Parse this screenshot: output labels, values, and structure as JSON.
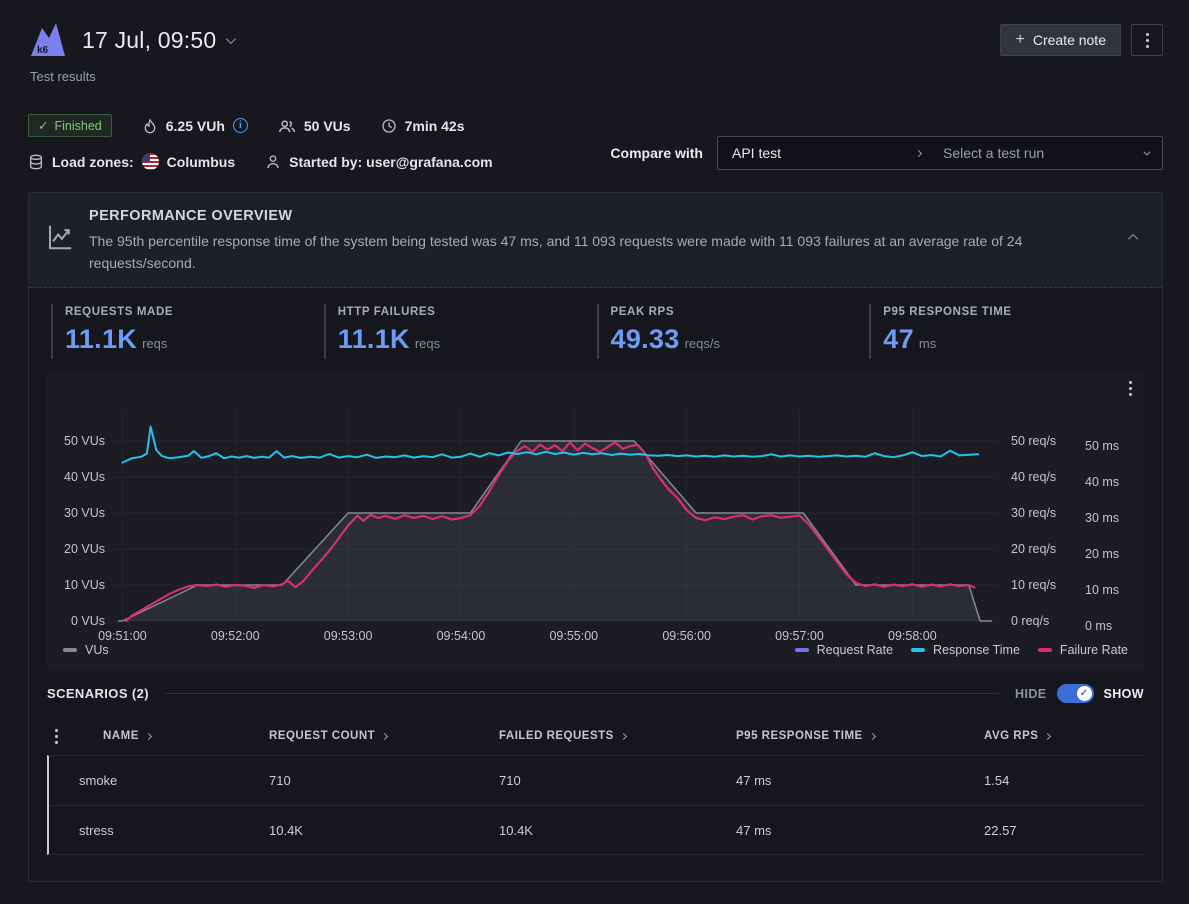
{
  "header": {
    "title": "17 Jul, 09:50",
    "subtitle": "Test results",
    "create_note_label": "Create note"
  },
  "summary": {
    "status": "Finished",
    "vuh": "6.25 VUh",
    "vus": "50 VUs",
    "duration": "7min 42s",
    "load_zones_label": "Load zones:",
    "load_zone": "Columbus",
    "started_by": "Started by: user@grafana.com"
  },
  "compare": {
    "label": "Compare with",
    "test_name": "API test",
    "placeholder": "Select a test run"
  },
  "overview": {
    "title": "PERFORMANCE OVERVIEW",
    "description": "The 95th percentile response time of the system being tested was 47 ms, and 11 093 requests were made with 11 093 failures at an average rate of 24 requests/second.",
    "stats": [
      {
        "label": "REQUESTS MADE",
        "value": "11.1K",
        "unit": "reqs"
      },
      {
        "label": "HTTP FAILURES",
        "value": "11.1K",
        "unit": "reqs"
      },
      {
        "label": "PEAK RPS",
        "value": "49.33",
        "unit": "reqs/s"
      },
      {
        "label": "P95 RESPONSE TIME",
        "value": "47",
        "unit": "ms"
      }
    ]
  },
  "chart_data": {
    "type": "line",
    "x_ticks": [
      "09:51:00",
      "09:52:00",
      "09:53:00",
      "09:54:00",
      "09:55:00",
      "09:56:00",
      "09:57:00",
      "09:58:00"
    ],
    "y_ticks": [
      0,
      10,
      20,
      30,
      40,
      50
    ],
    "y_left_suffix": "VUs",
    "y_right1_suffix": "req/s",
    "y_right2_suffix": "ms",
    "time_domain_seconds": [
      -5,
      465
    ],
    "y_max": 55,
    "series": [
      {
        "name": "VUs",
        "color": "#878a91",
        "fill": "rgba(130,133,140,0.16)",
        "type": "area",
        "points": [
          [
            -2,
            0
          ],
          [
            0,
            0
          ],
          [
            40,
            10
          ],
          [
            85,
            10
          ],
          [
            120,
            30
          ],
          [
            185,
            30
          ],
          [
            212,
            50
          ],
          [
            272,
            50
          ],
          [
            305,
            30
          ],
          [
            362,
            30
          ],
          [
            390,
            10
          ],
          [
            450,
            10
          ],
          [
            456,
            0
          ],
          [
            462,
            0
          ]
        ]
      },
      {
        "name": "Request Rate",
        "color": "#7b70f0",
        "points_ref": "Failure Rate"
      },
      {
        "name": "Failure Rate",
        "color": "#e12a6d",
        "points": [
          [
            2,
            0
          ],
          [
            5,
            1.5
          ],
          [
            10,
            3
          ],
          [
            15,
            4.5
          ],
          [
            20,
            6
          ],
          [
            25,
            7.5
          ],
          [
            30,
            8.7
          ],
          [
            35,
            9.6
          ],
          [
            40,
            10
          ],
          [
            45,
            9.7
          ],
          [
            50,
            10.1
          ],
          [
            55,
            9.5
          ],
          [
            60,
            10
          ],
          [
            65,
            9.8
          ],
          [
            70,
            9.2
          ],
          [
            75,
            10
          ],
          [
            80,
            9.6
          ],
          [
            85,
            10.2
          ],
          [
            88,
            11.2
          ],
          [
            92,
            9.4
          ],
          [
            96,
            11
          ],
          [
            100,
            13.5
          ],
          [
            105,
            16.5
          ],
          [
            110,
            19.5
          ],
          [
            115,
            23
          ],
          [
            120,
            26.5
          ],
          [
            125,
            29.3
          ],
          [
            128,
            27.8
          ],
          [
            132,
            29.5
          ],
          [
            136,
            28.6
          ],
          [
            140,
            29.2
          ],
          [
            145,
            28.4
          ],
          [
            150,
            29.4
          ],
          [
            155,
            28.6
          ],
          [
            160,
            29.2
          ],
          [
            165,
            28.3
          ],
          [
            170,
            29.1
          ],
          [
            175,
            28.2
          ],
          [
            180,
            28.6
          ],
          [
            185,
            29.4
          ],
          [
            190,
            32
          ],
          [
            195,
            36
          ],
          [
            200,
            40.5
          ],
          [
            205,
            44.5
          ],
          [
            210,
            47.3
          ],
          [
            214,
            48.6
          ],
          [
            218,
            47
          ],
          [
            222,
            49
          ],
          [
            226,
            47.6
          ],
          [
            230,
            48.8
          ],
          [
            234,
            47.2
          ],
          [
            238,
            49.6
          ],
          [
            242,
            47.4
          ],
          [
            246,
            49.3
          ],
          [
            250,
            48
          ],
          [
            254,
            47
          ],
          [
            258,
            48.4
          ],
          [
            262,
            49.6
          ],
          [
            266,
            47.8
          ],
          [
            270,
            48.6
          ],
          [
            274,
            48.9
          ],
          [
            278,
            46.5
          ],
          [
            282,
            42.5
          ],
          [
            286,
            39.5
          ],
          [
            290,
            36.8
          ],
          [
            295,
            34.2
          ],
          [
            300,
            30.8
          ],
          [
            305,
            28.6
          ],
          [
            310,
            28
          ],
          [
            315,
            28.8
          ],
          [
            320,
            28.3
          ],
          [
            325,
            29
          ],
          [
            330,
            29.4
          ],
          [
            335,
            28.2
          ],
          [
            340,
            29.1
          ],
          [
            345,
            29.4
          ],
          [
            350,
            28.7
          ],
          [
            355,
            29
          ],
          [
            360,
            29.3
          ],
          [
            365,
            26.8
          ],
          [
            370,
            23.4
          ],
          [
            375,
            20
          ],
          [
            380,
            16.4
          ],
          [
            385,
            13
          ],
          [
            390,
            10.6
          ],
          [
            395,
            9.7
          ],
          [
            400,
            10.2
          ],
          [
            405,
            9.5
          ],
          [
            410,
            10.1
          ],
          [
            415,
            9.7
          ],
          [
            420,
            10.2
          ],
          [
            425,
            9.5
          ],
          [
            430,
            10.1
          ],
          [
            435,
            9.6
          ],
          [
            440,
            10.2
          ],
          [
            445,
            9.7
          ],
          [
            450,
            10
          ],
          [
            453,
            9.3
          ]
        ]
      },
      {
        "name": "Response Time",
        "color": "#24c2ee",
        "points": [
          [
            0,
            44
          ],
          [
            5,
            45.2
          ],
          [
            10,
            45.6
          ],
          [
            13,
            46.5
          ],
          [
            15,
            54
          ],
          [
            18,
            47.5
          ],
          [
            21,
            45.8
          ],
          [
            25,
            45.2
          ],
          [
            30,
            45.5
          ],
          [
            35,
            45.9
          ],
          [
            38,
            47.2
          ],
          [
            42,
            45.3
          ],
          [
            46,
            45.8
          ],
          [
            50,
            46.6
          ],
          [
            54,
            45.2
          ],
          [
            58,
            45.7
          ],
          [
            62,
            45.4
          ],
          [
            66,
            45.8
          ],
          [
            70,
            45.3
          ],
          [
            74,
            45.6
          ],
          [
            78,
            45.4
          ],
          [
            82,
            47.2
          ],
          [
            86,
            45.4
          ],
          [
            90,
            45.8
          ],
          [
            95,
            45.3
          ],
          [
            100,
            45.6
          ],
          [
            105,
            45.4
          ],
          [
            110,
            46.4
          ],
          [
            115,
            45.4
          ],
          [
            120,
            45.8
          ],
          [
            125,
            45.5
          ],
          [
            130,
            46.2
          ],
          [
            135,
            45.3
          ],
          [
            140,
            45.7
          ],
          [
            145,
            45.5
          ],
          [
            150,
            46
          ],
          [
            155,
            45.4
          ],
          [
            160,
            45.8
          ],
          [
            165,
            45.5
          ],
          [
            170,
            46.3
          ],
          [
            175,
            45.4
          ],
          [
            180,
            45.6
          ],
          [
            185,
            46.5
          ],
          [
            190,
            45.6
          ],
          [
            195,
            46.6
          ],
          [
            200,
            46
          ],
          [
            205,
            46.8
          ],
          [
            210,
            46.4
          ],
          [
            215,
            46.9
          ],
          [
            220,
            46.3
          ],
          [
            225,
            47
          ],
          [
            230,
            46.4
          ],
          [
            235,
            46.8
          ],
          [
            240,
            46.2
          ],
          [
            245,
            46.7
          ],
          [
            250,
            46.3
          ],
          [
            255,
            46.6
          ],
          [
            260,
            46.1
          ],
          [
            265,
            46.5
          ],
          [
            270,
            46.2
          ],
          [
            275,
            46.4
          ],
          [
            280,
            46
          ],
          [
            285,
            45.9
          ],
          [
            290,
            46.1
          ],
          [
            295,
            45.8
          ],
          [
            300,
            46
          ],
          [
            305,
            45.7
          ],
          [
            310,
            45.9
          ],
          [
            315,
            45.6
          ],
          [
            320,
            46
          ],
          [
            325,
            45.7
          ],
          [
            330,
            45.9
          ],
          [
            335,
            45.6
          ],
          [
            340,
            45.8
          ],
          [
            345,
            46.3
          ],
          [
            350,
            45.7
          ],
          [
            355,
            46
          ],
          [
            360,
            45.7
          ],
          [
            365,
            45.9
          ],
          [
            370,
            45.6
          ],
          [
            375,
            45.8
          ],
          [
            380,
            46
          ],
          [
            385,
            45.7
          ],
          [
            390,
            45.9
          ],
          [
            395,
            45.6
          ],
          [
            400,
            46.6
          ],
          [
            405,
            45.8
          ],
          [
            410,
            45.5
          ],
          [
            415,
            46
          ],
          [
            420,
            46.9
          ],
          [
            425,
            45.8
          ],
          [
            430,
            46.1
          ],
          [
            435,
            45.7
          ],
          [
            440,
            47.3
          ],
          [
            445,
            46
          ],
          [
            450,
            46.2
          ],
          [
            455,
            46.3
          ]
        ]
      }
    ]
  },
  "scenarios": {
    "title": "SCENARIOS (2)",
    "hide_label": "HIDE",
    "show_label": "SHOW",
    "columns": [
      "NAME",
      "REQUEST COUNT",
      "FAILED REQUESTS",
      "P95 RESPONSE TIME",
      "AVG RPS"
    ],
    "rows": [
      {
        "name": "smoke",
        "request_count": "710",
        "failed_requests": "710",
        "p95": "47 ms",
        "avg_rps": "1.54"
      },
      {
        "name": "stress",
        "request_count": "10.4K",
        "failed_requests": "10.4K",
        "p95": "47 ms",
        "avg_rps": "22.57"
      }
    ]
  },
  "colors": {
    "accent_blue": "#6f9bf6",
    "toggle_blue": "#3a6fd8",
    "status_green": "#7ccb6f",
    "request_rate": "#7b70f0",
    "response_time": "#24c2ee",
    "failure_rate": "#e12a6d",
    "vus_gray": "#878a91"
  }
}
